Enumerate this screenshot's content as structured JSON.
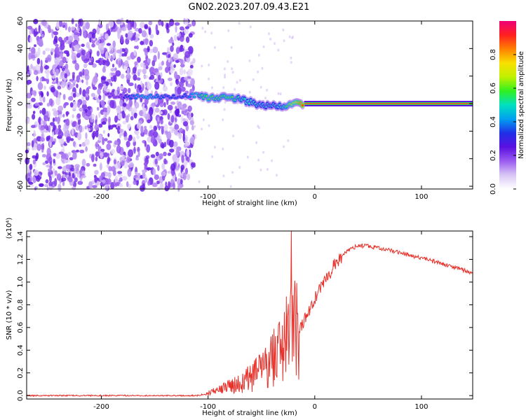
{
  "title": "GN02.2023.207.09.43.E21",
  "colors": {
    "snr_line": "#e8312a",
    "cmap": [
      "#ffffff",
      "#d9c6f5",
      "#9a5cf0",
      "#5a10e0",
      "#2030e8",
      "#00a0f0",
      "#00e0c0",
      "#30f020",
      "#c0f000",
      "#f8e000",
      "#ff8000",
      "#ff2020",
      "#f00078"
    ]
  },
  "chart_data": [
    {
      "type": "heatmap",
      "title": "GN02.2023.207.09.43.E21",
      "xlabel": "Height of straight line (km)",
      "ylabel": "Frequency (Hz)",
      "xlim": [
        -270,
        148
      ],
      "ylim": [
        -62,
        60
      ],
      "xticks": [
        -200,
        -100,
        0,
        100
      ],
      "xtick_labels": [
        "-200",
        "-100",
        "0",
        "100"
      ],
      "yticks": [
        60,
        40,
        20,
        0,
        -20,
        -40,
        -60
      ],
      "ytick_labels": [
        "60",
        "40",
        "20",
        "0",
        "-20",
        "-40",
        "-60"
      ],
      "colorbar": {
        "label": "Normalized spectral amplitude",
        "range": [
          0,
          1
        ],
        "ticks": [
          0.0,
          0.2,
          0.4,
          0.6,
          0.8
        ],
        "tick_labels": [
          "0.0",
          "0.2",
          "0.4",
          "0.6",
          "0.8"
        ]
      },
      "ridge": {
        "x": [
          -195,
          -180,
          -160,
          -140,
          -120,
          -110,
          -100,
          -90,
          -80,
          -70,
          -60,
          -50,
          -40,
          -30,
          -20,
          -10,
          0,
          50,
          100,
          148
        ],
        "y": [
          6,
          5,
          5,
          5,
          6,
          6,
          4,
          4,
          5,
          3,
          1,
          -2,
          -1,
          -2,
          1,
          0,
          0,
          0,
          0,
          0
        ],
        "amp": [
          0.3,
          0.3,
          0.45,
          0.35,
          0.35,
          0.5,
          0.6,
          0.55,
          0.6,
          0.5,
          0.5,
          0.45,
          0.45,
          0.5,
          0.7,
          0.9,
          0.9,
          0.9,
          0.9,
          0.9
        ]
      },
      "noise_region_x": [
        -270,
        -113
      ],
      "noise_amplitude_range": [
        0.05,
        0.25
      ]
    },
    {
      "type": "line",
      "xlabel": "Height of straight line (km)",
      "ylabel": "SNR (10 * v/v)",
      "y_multiplier": "(x10⁴)",
      "xlim": [
        -270,
        148
      ],
      "ylim": [
        -0.03,
        1.45
      ],
      "xticks": [
        -200,
        -100,
        0,
        100
      ],
      "xtick_labels": [
        "-200",
        "-100",
        "0",
        "100"
      ],
      "yticks": [
        0.0,
        0.2,
        0.4,
        0.6,
        0.8,
        1.0,
        1.2,
        1.4
      ],
      "ytick_labels": [
        "0.0",
        "0.2",
        "0.4",
        "0.6",
        "0.8",
        "1.0",
        "1.2",
        "1.4"
      ],
      "series": [
        {
          "x": [
            -270,
            -200,
            -150,
            -110,
            -100,
            -90,
            -80,
            -70,
            -60,
            -50,
            -40,
            -30,
            -25,
            -20,
            -15,
            -10,
            0,
            10,
            20,
            30,
            40,
            50,
            60,
            80,
            100,
            120,
            148
          ],
          "y": [
            0.0,
            0.0,
            0.0,
            0.0,
            0.02,
            0.05,
            0.08,
            0.1,
            0.15,
            0.2,
            0.3,
            0.4,
            0.5,
            0.55,
            0.55,
            0.65,
            0.85,
            1.02,
            1.17,
            1.27,
            1.32,
            1.32,
            1.3,
            1.26,
            1.21,
            1.16,
            1.08
          ],
          "spike": {
            "x": -22,
            "y": 1.45
          }
        }
      ]
    }
  ]
}
